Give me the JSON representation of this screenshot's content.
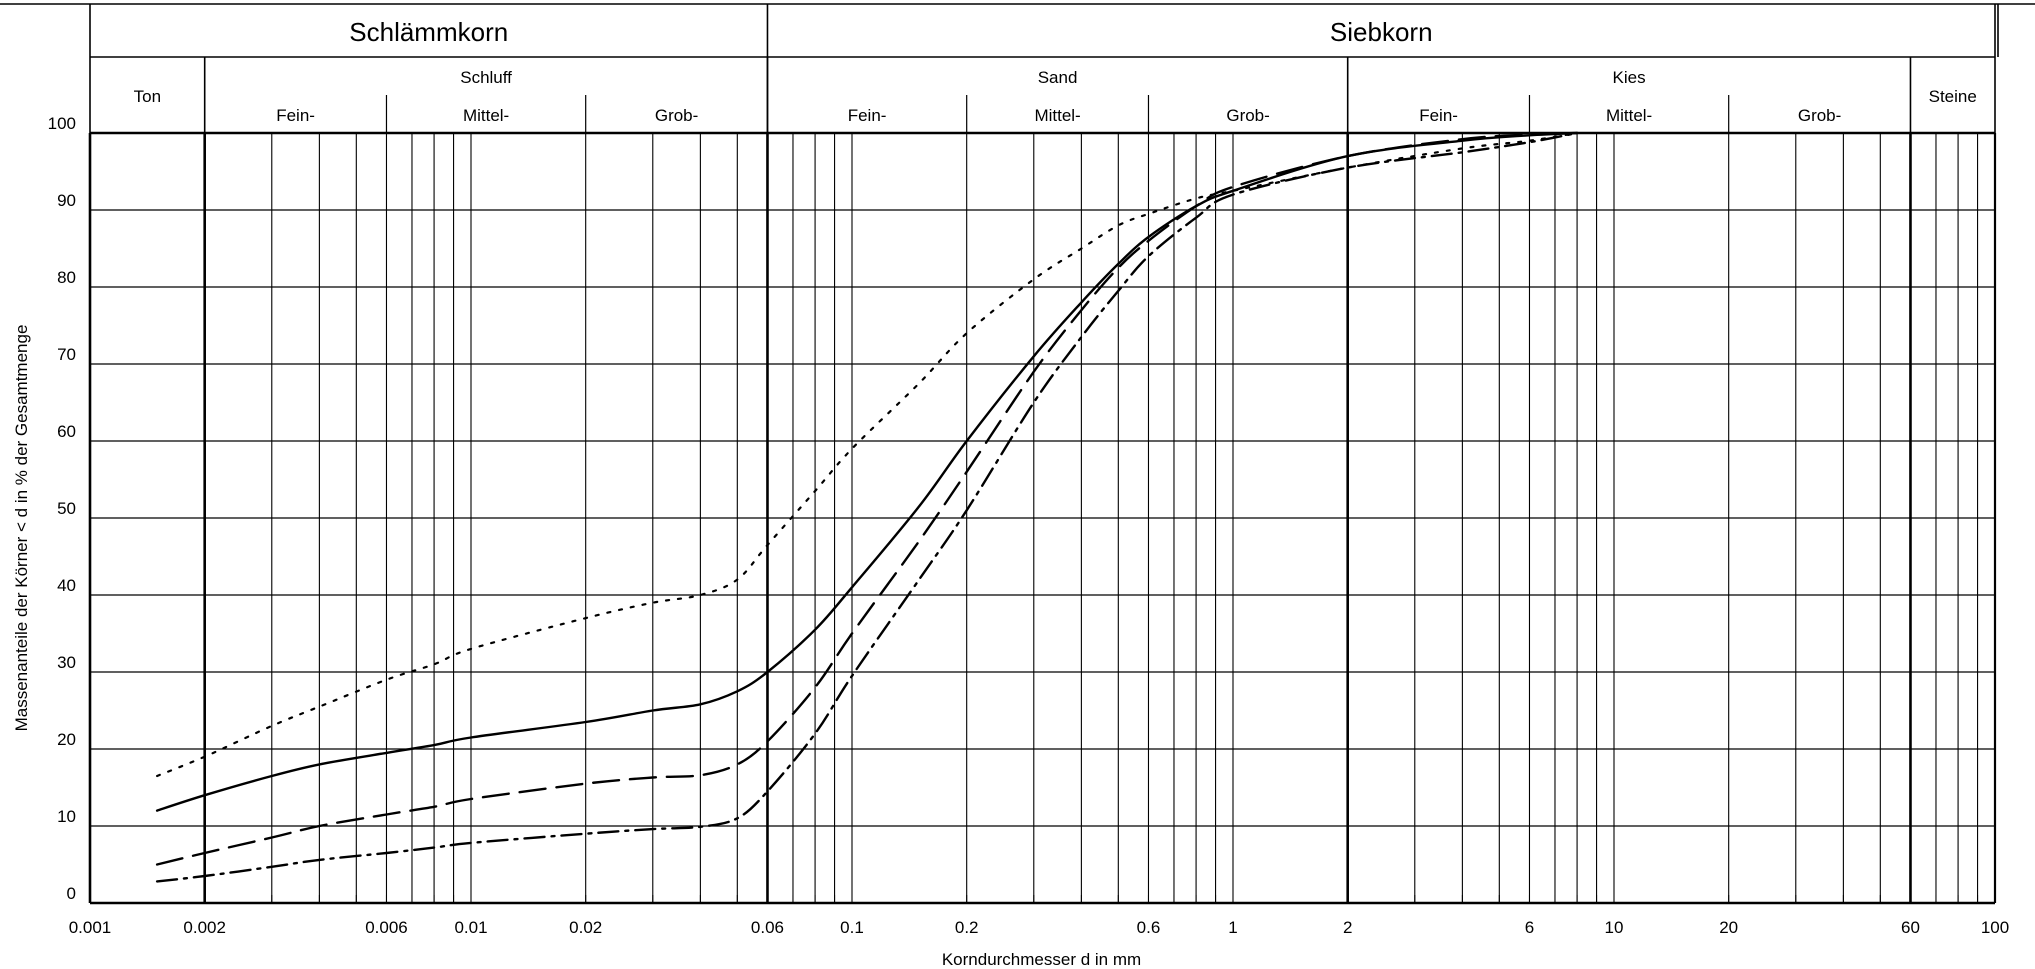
{
  "chart_data": {
    "type": "line",
    "x_scale": "log",
    "xlim": [
      0.001,
      100
    ],
    "ylim": [
      0,
      100
    ],
    "grid": true,
    "xlabel": "Korndurchmesser d in mm",
    "ylabel": "Massenanteile der Körner < d in % der Gesamtmenge",
    "x_tick_values": [
      0.001,
      0.002,
      0.006,
      0.01,
      0.02,
      0.06,
      0.1,
      0.2,
      0.6,
      1,
      2,
      6,
      10,
      20,
      60,
      100
    ],
    "x_tick_labels": [
      "0.001",
      "0.002",
      "0.006",
      "0.01",
      "0.02",
      "0.06",
      "0.1",
      "0.2",
      "0.6",
      "1",
      "2",
      "6",
      "10",
      "20",
      "60",
      "100"
    ],
    "y_tick_values": [
      0,
      10,
      20,
      30,
      40,
      50,
      60,
      70,
      80,
      90,
      100
    ],
    "y_tick_labels": [
      "0",
      "10",
      "20",
      "30",
      "40",
      "50",
      "60",
      "70",
      "80",
      "90",
      "100"
    ],
    "classification": {
      "groups": [
        {
          "label": "Schlämmkorn",
          "from": 0.001,
          "to": 0.06
        },
        {
          "label": "Siebkorn",
          "from": 0.06,
          "to": 100
        }
      ],
      "fractions": [
        {
          "label": "Ton",
          "from": 0.001,
          "to": 0.002
        },
        {
          "label": "Schluff",
          "from": 0.002,
          "to": 0.06
        },
        {
          "label": "Sand",
          "from": 0.06,
          "to": 2
        },
        {
          "label": "Kies",
          "from": 2,
          "to": 60
        },
        {
          "label": "Steine",
          "from": 60,
          "to": 100
        }
      ],
      "subfractions": [
        {
          "label": "Fein-",
          "from": 0.002,
          "to": 0.006
        },
        {
          "label": "Mittel-",
          "from": 0.006,
          "to": 0.02
        },
        {
          "label": "Grob-",
          "from": 0.02,
          "to": 0.06
        },
        {
          "label": "Fein-",
          "from": 0.06,
          "to": 0.2
        },
        {
          "label": "Mittel-",
          "from": 0.2,
          "to": 0.6
        },
        {
          "label": "Grob-",
          "from": 0.6,
          "to": 2
        },
        {
          "label": "Fein-",
          "from": 2,
          "to": 6
        },
        {
          "label": "Mittel-",
          "from": 6,
          "to": 20
        },
        {
          "label": "Grob-",
          "from": 20,
          "to": 60
        }
      ]
    },
    "series": [
      {
        "style": "solid",
        "x": [
          0.0015,
          0.002,
          0.003,
          0.004,
          0.006,
          0.008,
          0.01,
          0.02,
          0.03,
          0.04,
          0.05,
          0.06,
          0.08,
          0.1,
          0.15,
          0.2,
          0.3,
          0.4,
          0.5,
          0.6,
          0.8,
          1,
          2,
          4,
          6,
          8
        ],
        "y": [
          12,
          14,
          16.5,
          18,
          19.5,
          20.5,
          21.5,
          23.5,
          25,
          25.8,
          27.5,
          30,
          35.5,
          41,
          51.5,
          60,
          71,
          78,
          83,
          86.5,
          90.5,
          92.5,
          97,
          99,
          99.7,
          100
        ]
      },
      {
        "style": "dotted",
        "x": [
          0.0015,
          0.002,
          0.003,
          0.004,
          0.006,
          0.008,
          0.01,
          0.02,
          0.03,
          0.04,
          0.05,
          0.06,
          0.08,
          0.1,
          0.15,
          0.2,
          0.3,
          0.4,
          0.5,
          0.6,
          0.8,
          1,
          2,
          4,
          6,
          8
        ],
        "y": [
          16.5,
          19,
          23,
          25.5,
          29,
          31,
          33,
          37,
          39,
          40,
          42,
          46.5,
          53.5,
          59,
          67.5,
          74,
          81,
          85,
          88,
          89.5,
          91.5,
          92.5,
          95.5,
          98,
          99,
          100
        ]
      },
      {
        "style": "dashed",
        "x": [
          0.0015,
          0.002,
          0.003,
          0.004,
          0.006,
          0.008,
          0.01,
          0.02,
          0.03,
          0.04,
          0.05,
          0.06,
          0.08,
          0.1,
          0.15,
          0.2,
          0.3,
          0.4,
          0.5,
          0.6,
          0.8,
          1,
          2,
          4,
          6,
          8
        ],
        "y": [
          5,
          6.5,
          8.5,
          10,
          11.5,
          12.5,
          13.5,
          15.5,
          16.3,
          16.6,
          18,
          21,
          28,
          35,
          47,
          56,
          69,
          77,
          82.5,
          86,
          90.5,
          93,
          97,
          99.2,
          99.8,
          100
        ]
      },
      {
        "style": "dashdot",
        "x": [
          0.0015,
          0.002,
          0.003,
          0.004,
          0.006,
          0.008,
          0.01,
          0.02,
          0.03,
          0.04,
          0.05,
          0.06,
          0.08,
          0.1,
          0.15,
          0.2,
          0.3,
          0.4,
          0.5,
          0.6,
          0.8,
          1,
          2,
          4,
          6,
          8
        ],
        "y": [
          2.8,
          3.5,
          4.7,
          5.6,
          6.5,
          7.2,
          7.8,
          9,
          9.6,
          9.9,
          11,
          14.5,
          22,
          29.5,
          42,
          51,
          65,
          73.5,
          79.5,
          84,
          89,
          92,
          95.5,
          97.5,
          98.8,
          100
        ]
      }
    ]
  }
}
